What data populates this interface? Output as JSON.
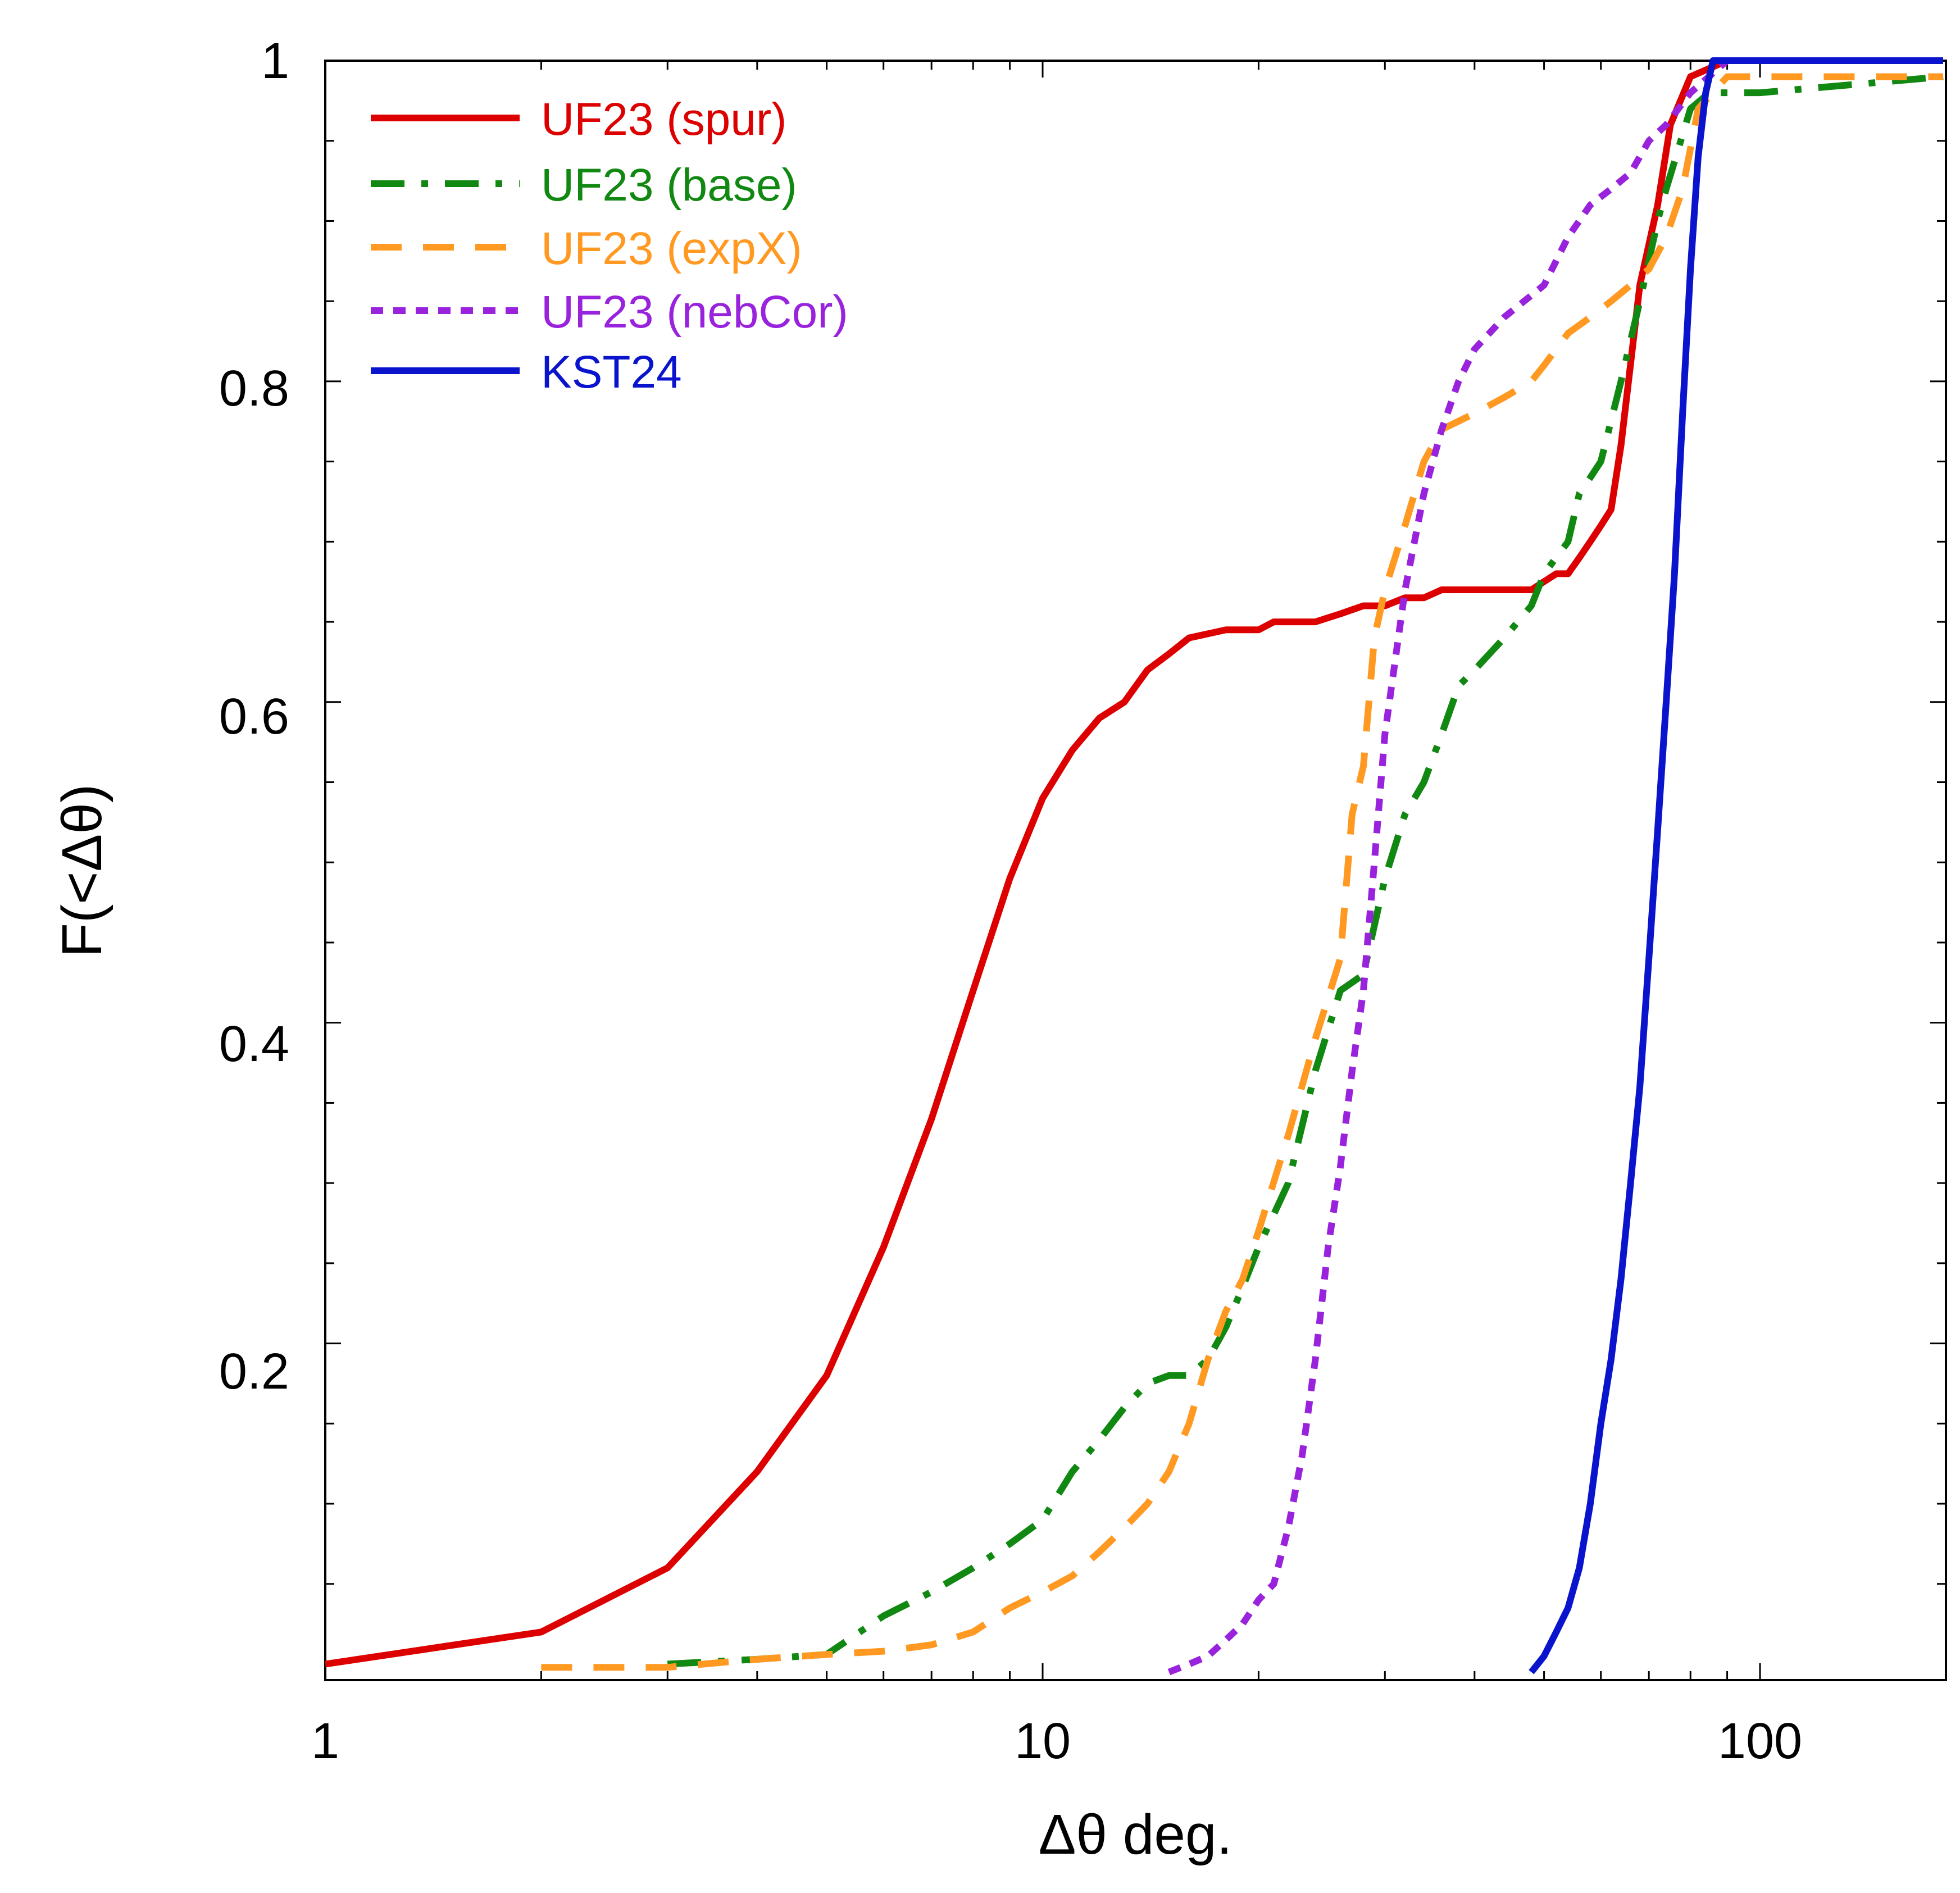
{
  "chart_data": {
    "type": "line",
    "title": "",
    "xlabel": "Δθ deg.",
    "ylabel": "F(<Δθ)",
    "xscale": "log",
    "xlim": [
      1,
      180
    ],
    "ylim": [
      -0.01,
      1
    ],
    "grid": false,
    "legend_position": "top-left",
    "x_ticks": [
      {
        "value": 1,
        "label": "1"
      },
      {
        "value": 10,
        "label": "10"
      },
      {
        "value": 100,
        "label": "100"
      }
    ],
    "y_ticks": [
      {
        "value": 0.2,
        "label": "0.2"
      },
      {
        "value": 0.4,
        "label": "0.4"
      },
      {
        "value": 0.6,
        "label": "0.6"
      },
      {
        "value": 0.8,
        "label": "0.8"
      },
      {
        "value": 1,
        "label": "1"
      }
    ],
    "y_minor_step": 0.05,
    "series": [
      {
        "name": "UF23 (spur)",
        "color": "#dd0000",
        "dash": "solid",
        "x": [
          1,
          2,
          3,
          4,
          5,
          6,
          7,
          8,
          9,
          10,
          11,
          12,
          13,
          14,
          15,
          16,
          18,
          20,
          21,
          24,
          26,
          28,
          30,
          32,
          34,
          36,
          40,
          48,
          52,
          54,
          56,
          58,
          60,
          62,
          64,
          68,
          72,
          75,
          80,
          90,
          180
        ],
        "y": [
          0,
          0.02,
          0.06,
          0.12,
          0.18,
          0.26,
          0.34,
          0.42,
          0.49,
          0.54,
          0.57,
          0.59,
          0.6,
          0.62,
          0.63,
          0.64,
          0.645,
          0.645,
          0.65,
          0.65,
          0.655,
          0.66,
          0.66,
          0.665,
          0.665,
          0.67,
          0.67,
          0.67,
          0.68,
          0.68,
          0.69,
          0.7,
          0.71,
          0.72,
          0.76,
          0.86,
          0.91,
          0.96,
          0.99,
          1.0,
          1.0
        ]
      },
      {
        "name": "UF23 (base)",
        "color": "#118811",
        "dash": "long-dash-dot",
        "x": [
          3,
          4,
          5,
          6,
          7,
          8,
          9,
          10,
          11,
          12,
          13,
          14,
          15,
          16,
          17,
          18,
          19,
          20,
          22,
          24,
          26,
          28,
          30,
          32,
          34,
          36,
          38,
          40,
          44,
          48,
          50,
          54,
          56,
          58,
          60,
          64,
          68,
          72,
          74,
          80,
          85,
          100,
          180
        ],
        "y": [
          0,
          0.003,
          0.006,
          0.03,
          0.045,
          0.06,
          0.075,
          0.09,
          0.12,
          0.14,
          0.16,
          0.175,
          0.18,
          0.18,
          0.19,
          0.21,
          0.235,
          0.26,
          0.3,
          0.37,
          0.42,
          0.43,
          0.49,
          0.53,
          0.55,
          0.58,
          0.61,
          0.62,
          0.64,
          0.66,
          0.68,
          0.7,
          0.73,
          0.74,
          0.75,
          0.8,
          0.85,
          0.9,
          0.92,
          0.97,
          0.98,
          0.98,
          0.99
        ]
      },
      {
        "name": "UF23 (expX)",
        "color": "#ff9922",
        "dash": "long-dash",
        "x": [
          2,
          3,
          4,
          5,
          6,
          7,
          8,
          9,
          10,
          11,
          12,
          13,
          14,
          15,
          16,
          17,
          18,
          19,
          20,
          22,
          24,
          26,
          27,
          28,
          29,
          30,
          32,
          34,
          36,
          40,
          44,
          48,
          50,
          54,
          58,
          62,
          66,
          70,
          74,
          78,
          82,
          90,
          180
        ],
        "y": [
          -0.002,
          -0.002,
          0.003,
          0.006,
          0.008,
          0.012,
          0.02,
          0.035,
          0.045,
          0.055,
          0.07,
          0.085,
          0.1,
          0.12,
          0.15,
          0.19,
          0.22,
          0.24,
          0.27,
          0.33,
          0.39,
          0.44,
          0.53,
          0.56,
          0.64,
          0.67,
          0.71,
          0.75,
          0.77,
          0.78,
          0.79,
          0.8,
          0.81,
          0.83,
          0.84,
          0.85,
          0.86,
          0.87,
          0.89,
          0.92,
          0.97,
          0.99,
          0.99
        ]
      },
      {
        "name": "UF23 (nebCor)",
        "color": "#9922dd",
        "dash": "short-dash",
        "x": [
          15,
          16,
          17,
          18,
          19,
          20,
          21,
          22,
          23,
          24,
          25,
          26,
          27,
          28,
          29,
          30,
          32,
          34,
          36,
          38,
          40,
          44,
          50,
          54,
          58,
          62,
          66,
          70,
          74,
          80,
          90,
          180
        ],
        "y": [
          -0.005,
          0,
          0.005,
          0.015,
          0.025,
          0.04,
          0.05,
          0.085,
          0.13,
          0.19,
          0.26,
          0.31,
          0.37,
          0.42,
          0.5,
          0.58,
          0.67,
          0.73,
          0.77,
          0.8,
          0.82,
          0.84,
          0.86,
          0.89,
          0.91,
          0.92,
          0.93,
          0.95,
          0.96,
          0.98,
          1.0,
          1.0
        ]
      },
      {
        "name": "KST24",
        "color": "#0a14cc",
        "dash": "solid",
        "x": [
          48,
          50,
          52,
          54,
          56,
          58,
          60,
          62,
          64,
          66,
          68,
          70,
          72,
          74,
          76,
          78,
          80,
          82,
          84,
          86,
          88,
          90,
          95,
          180
        ],
        "y": [
          -0.005,
          0.005,
          0.02,
          0.035,
          0.06,
          0.1,
          0.15,
          0.19,
          0.24,
          0.3,
          0.36,
          0.44,
          0.52,
          0.6,
          0.68,
          0.78,
          0.87,
          0.94,
          0.98,
          1.0,
          1.0,
          1.0,
          1.0,
          1.0
        ]
      }
    ]
  }
}
